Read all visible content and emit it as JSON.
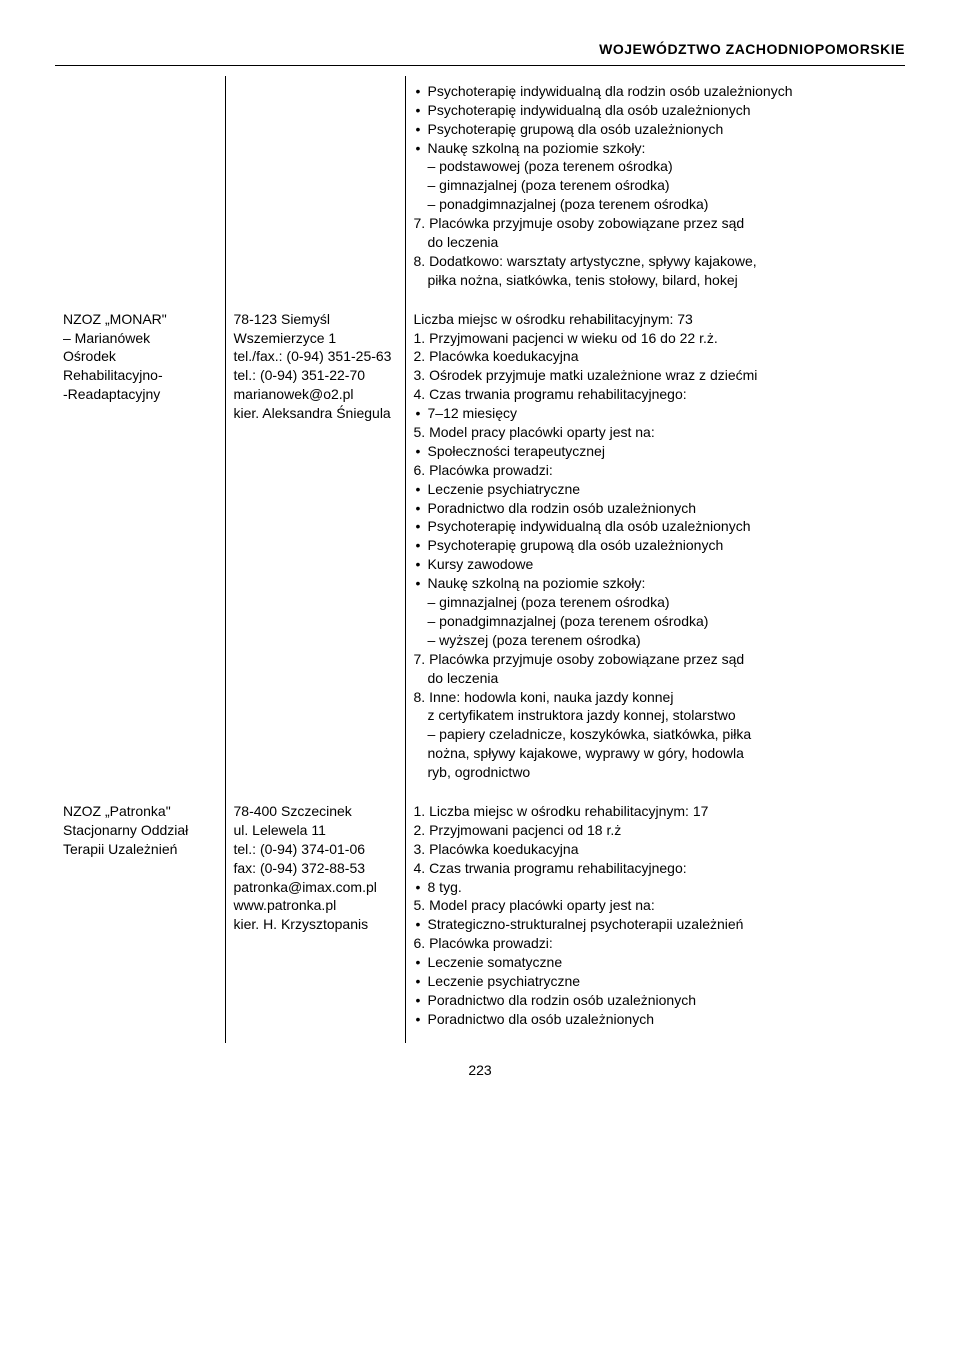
{
  "header": "WOJEWÓDZTWO ZACHODNIOPOMORSKIE",
  "pageNumber": "223",
  "rows": [
    {
      "name": "",
      "contact": "",
      "desc": "<ul class=\"bullets\"><li>Psychoterapię indywidualną dla rodzin osób uzależnionych</li><li>Psychoterapię indywidualną dla osób uzależnionych</li><li>Psychoterapię grupową dla osób uzależnionych</li><li>Naukę szkolną na poziomie szkoły:</li></ul><div class=\"indent\">– podstawowej (poza terenem ośrodka)<br>– gimnazjalnej (poza terenem ośrodka)<br>– ponadgimnazjalnej (poza terenem ośrodka)</div>7. Placówka przyjmuje osoby zobowiązane przez sąd<br><span class=\"indent\">do leczenia</span><br>8. Dodatkowo: warsztaty artystyczne, spływy kajakowe,<br><span class=\"indent\">piłka nożna, siatkówka, tenis stołowy, bilard, hokej</span>"
    },
    {
      "name": "NZOZ „MONAR\"<br>– Marianówek<br>Ośrodek Rehabilitacyjno-<br>-Readaptacyjny",
      "contact": "78-123 Siemyśl<br>Wszemierzyce 1<br>tel./fax.: (0-94) 351-25-63<br>tel.: (0-94) 351-22-70<br>marianowek@o2.pl<br>kier. Aleksandra Śniegula",
      "desc": "Liczba miejsc w ośrodku rehabilitacyjnym: 73<br>1. Przyjmowani pacjenci w wieku od 16 do 22 r.ż.<br>2. Placówka koedukacyjna<br>3. Ośrodek przyjmuje matki uzależnione wraz z dziećmi<br>4. Czas trwania programu rehabilitacyjnego:<ul class=\"bullets\"><li>7–12 miesięcy</li></ul>5. Model pracy placówki oparty jest na:<ul class=\"bullets\"><li>Społeczności terapeutycznej</li></ul>6. Placówka prowadzi:<ul class=\"bullets\"><li>Leczenie psychiatryczne</li><li>Poradnictwo dla rodzin osób uzależnionych</li><li>Psychoterapię indywidualną dla osób uzależnionych</li><li>Psychoterapię grupową dla osób uzależnionych</li><li>Kursy zawodowe</li><li>Naukę szkolną na poziomie szkoły:</li></ul><div class=\"indent\">– gimnazjalnej (poza terenem ośrodka)<br>– ponadgimnazjalnej (poza terenem ośrodka)<br>– wyższej (poza terenem ośrodka)</div>7. Placówka przyjmuje osoby zobowiązane przez sąd<br><span class=\"indent\">do leczenia</span><br>8. Inne: hodowla koni, nauka jazdy konnej<br><span class=\"indent\">z certyfikatem instruktora jazdy konnej, stolarstwo</span><br><span class=\"indent\">– papiery czeladnicze, koszykówka, siatkówka, piłka</span><br><span class=\"indent\">nożna, spływy kajakowe, wyprawy w góry, hodowla</span><br><span class=\"indent\">ryb, ogrodnictwo</span>"
    },
    {
      "name": "NZOZ „Patronka\"<br>Stacjonarny Oddział<br>Terapii Uzależnień",
      "contact": "78-400 Szczecinek<br>ul. Lelewela 11<br>tel.: (0-94) 374-01-06<br>fax: (0-94) 372-88-53<br>patronka@imax.com.pl<br>www.patronka.pl<br>kier. H. Krzysztopanis",
      "desc": "1. Liczba miejsc w ośrodku rehabilitacyjnym: 17<br>2. Przyjmowani pacjenci od 18 r.ż<br>3. Placówka koedukacyjna<br>4. Czas trwania programu rehabilitacyjnego:<ul class=\"bullets\"><li>8 tyg.</li></ul>5. Model pracy placówki oparty jest na:<ul class=\"bullets\"><li>Strategiczno-strukturalnej psychoterapii uzależnień</li></ul>6. Placówka prowadzi:<ul class=\"bullets\"><li>Leczenie somatyczne</li><li>Leczenie psychiatryczne</li><li>Poradnictwo dla rodzin osób uzależnionych</li><li>Poradnictwo dla osób uzależnionych</li></ul>"
    }
  ]
}
